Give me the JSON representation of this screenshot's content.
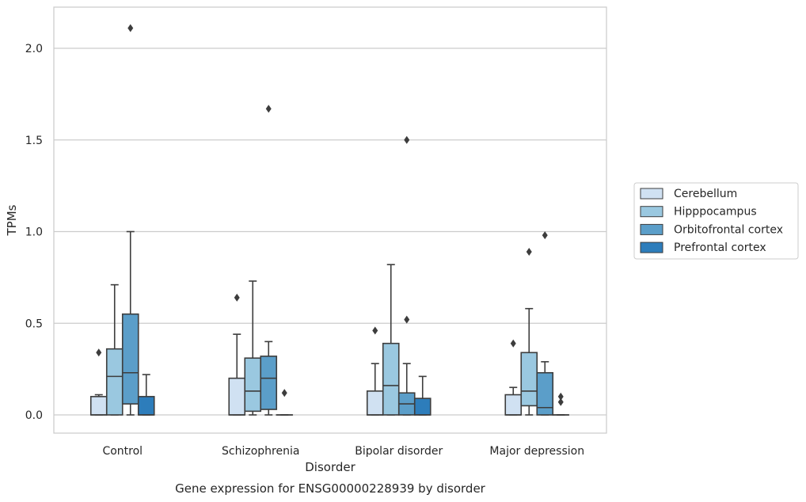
{
  "caption": "Gene expression for ENSG00000228939 by disorder",
  "chart_data": {
    "type": "box",
    "title": "",
    "xlabel": "Disorder",
    "ylabel": "TPMs",
    "ylim": [
      -0.1,
      2.22
    ],
    "yticks": [
      0.0,
      0.5,
      1.0,
      1.5,
      2.0
    ],
    "ytick_labels": [
      "0.0",
      "0.5",
      "1.0",
      "1.5",
      "2.0"
    ],
    "grid": "horizontal",
    "legend_position": "right",
    "categories": [
      "Control",
      "Schizophrenia",
      "Bipolar disorder",
      "Major depression"
    ],
    "series": [
      {
        "name": "Cerebellum",
        "color": "#d0e1f2",
        "boxes": [
          {
            "whisker_low": 0.0,
            "q1": 0.0,
            "median": 0.0,
            "q3": 0.1,
            "whisker_high": 0.11,
            "outliers": [
              0.34
            ]
          },
          {
            "whisker_low": 0.0,
            "q1": 0.0,
            "median": 0.0,
            "q3": 0.2,
            "whisker_high": 0.44,
            "outliers": [
              0.64
            ]
          },
          {
            "whisker_low": 0.0,
            "q1": 0.0,
            "median": 0.0,
            "q3": 0.13,
            "whisker_high": 0.28,
            "outliers": [
              0.46
            ]
          },
          {
            "whisker_low": 0.0,
            "q1": 0.0,
            "median": 0.0,
            "q3": 0.11,
            "whisker_high": 0.15,
            "outliers": [
              0.39
            ]
          }
        ]
      },
      {
        "name": "Hipppocampus",
        "color": "#9ac8e0",
        "boxes": [
          {
            "whisker_low": 0.0,
            "q1": 0.0,
            "median": 0.21,
            "q3": 0.36,
            "whisker_high": 0.71,
            "outliers": []
          },
          {
            "whisker_low": 0.0,
            "q1": 0.02,
            "median": 0.13,
            "q3": 0.31,
            "whisker_high": 0.73,
            "outliers": []
          },
          {
            "whisker_low": 0.0,
            "q1": 0.0,
            "median": 0.16,
            "q3": 0.39,
            "whisker_high": 0.82,
            "outliers": []
          },
          {
            "whisker_low": 0.0,
            "q1": 0.05,
            "median": 0.13,
            "q3": 0.34,
            "whisker_high": 0.58,
            "outliers": [
              0.89
            ]
          }
        ]
      },
      {
        "name": "Orbitofrontal cortex",
        "color": "#5b9ec9",
        "boxes": [
          {
            "whisker_low": 0.0,
            "q1": 0.06,
            "median": 0.23,
            "q3": 0.55,
            "whisker_high": 1.0,
            "outliers": [
              2.11
            ]
          },
          {
            "whisker_low": 0.0,
            "q1": 0.03,
            "median": 0.2,
            "q3": 0.32,
            "whisker_high": 0.4,
            "outliers": [
              1.67
            ]
          },
          {
            "whisker_low": 0.0,
            "q1": 0.0,
            "median": 0.06,
            "q3": 0.12,
            "whisker_high": 0.28,
            "outliers": [
              0.52,
              1.5
            ]
          },
          {
            "whisker_low": 0.0,
            "q1": 0.0,
            "median": 0.04,
            "q3": 0.23,
            "whisker_high": 0.29,
            "outliers": [
              0.98
            ]
          }
        ]
      },
      {
        "name": "Prefrontal cortex",
        "color": "#2d7dbb",
        "boxes": [
          {
            "whisker_low": 0.0,
            "q1": 0.0,
            "median": 0.0,
            "q3": 0.1,
            "whisker_high": 0.22,
            "outliers": []
          },
          {
            "whisker_low": 0.0,
            "q1": 0.0,
            "median": 0.0,
            "q3": 0.0,
            "whisker_high": 0.0,
            "outliers": [
              0.12
            ]
          },
          {
            "whisker_low": 0.0,
            "q1": 0.0,
            "median": 0.0,
            "q3": 0.09,
            "whisker_high": 0.21,
            "outliers": []
          },
          {
            "whisker_low": 0.0,
            "q1": 0.0,
            "median": 0.0,
            "q3": 0.0,
            "whisker_high": 0.0,
            "outliers": [
              0.07,
              0.1
            ]
          }
        ]
      }
    ]
  }
}
